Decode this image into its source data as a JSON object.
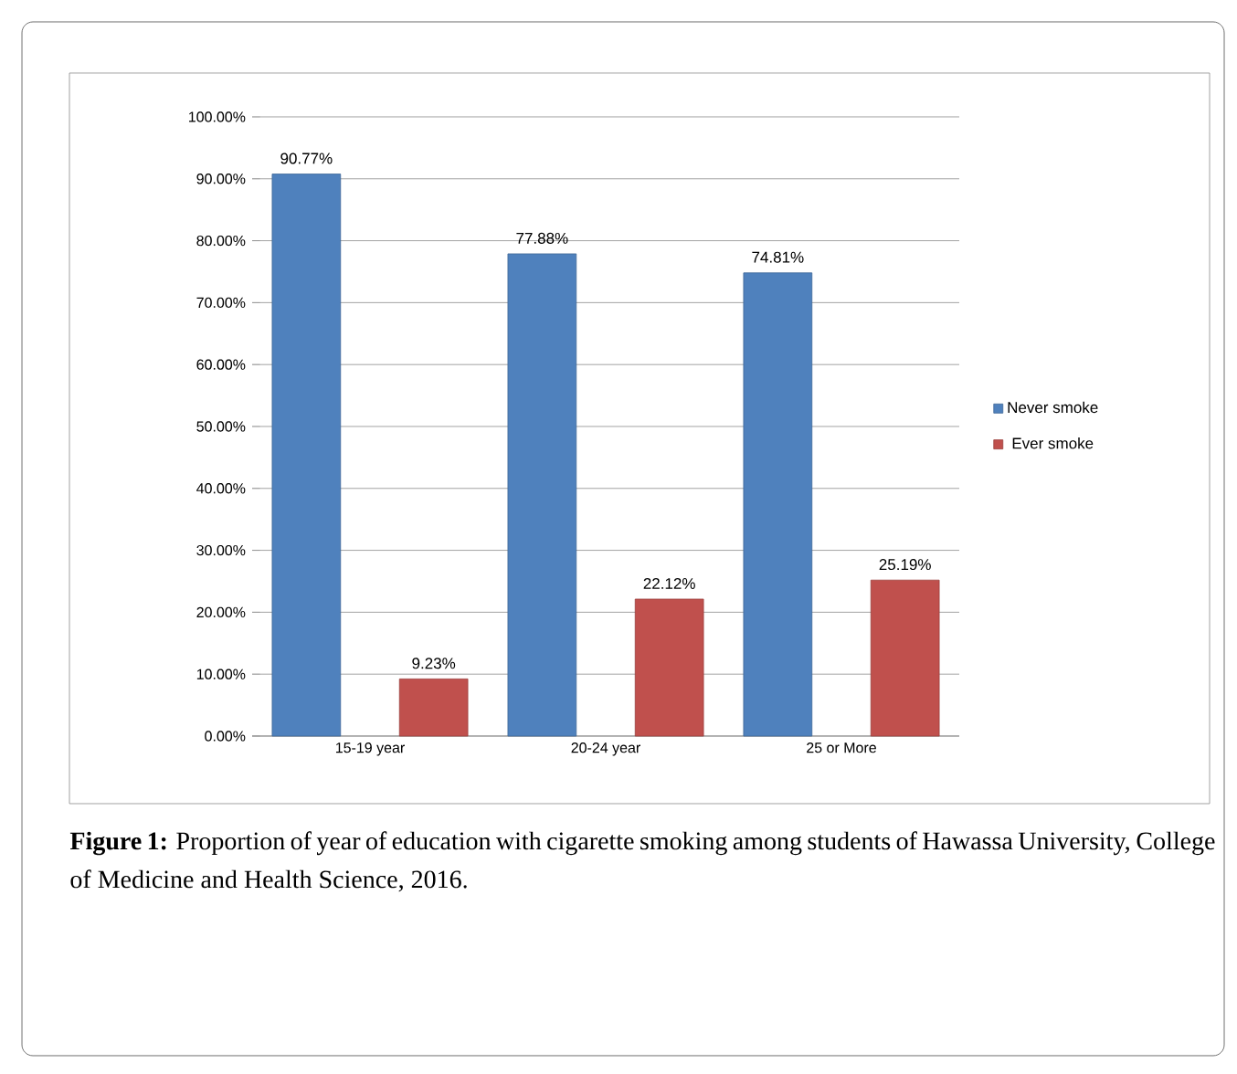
{
  "chart_data": {
    "type": "bar",
    "categories": [
      "15-19 year",
      "20-24 year",
      "25 or More"
    ],
    "series": [
      {
        "name": "Never smoke",
        "color": "#4f81bd",
        "values": [
          90.77,
          77.88,
          74.81
        ],
        "value_labels": [
          "90.77%",
          "77.88%",
          "74.81%"
        ]
      },
      {
        "name": "Ever smoke",
        "color": "#c0504d",
        "values": [
          9.23,
          22.12,
          25.19
        ],
        "value_labels": [
          "9.23%",
          "22.12%",
          "25.19%"
        ]
      }
    ],
    "ylim": [
      0,
      100
    ],
    "yticks": [
      {
        "value": 0,
        "label": "0.00%"
      },
      {
        "value": 10,
        "label": "10.00%"
      },
      {
        "value": 20,
        "label": "20.00%"
      },
      {
        "value": 30,
        "label": "30.00%"
      },
      {
        "value": 40,
        "label": "40.00%"
      },
      {
        "value": 50,
        "label": "50.00%"
      },
      {
        "value": 60,
        "label": "60.00%"
      },
      {
        "value": 70,
        "label": "70.00%"
      },
      {
        "value": 80,
        "label": "80.00%"
      },
      {
        "value": 90,
        "label": "90.00%"
      },
      {
        "value": 100,
        "label": "100.00%"
      }
    ],
    "grid": "y",
    "legend": "right",
    "annotations": [
      "**Figure 1:** Proportion of year of education with cigarette smoking among students of Hawassa University, College of Medicine and Health Science, 2016."
    ]
  }
}
